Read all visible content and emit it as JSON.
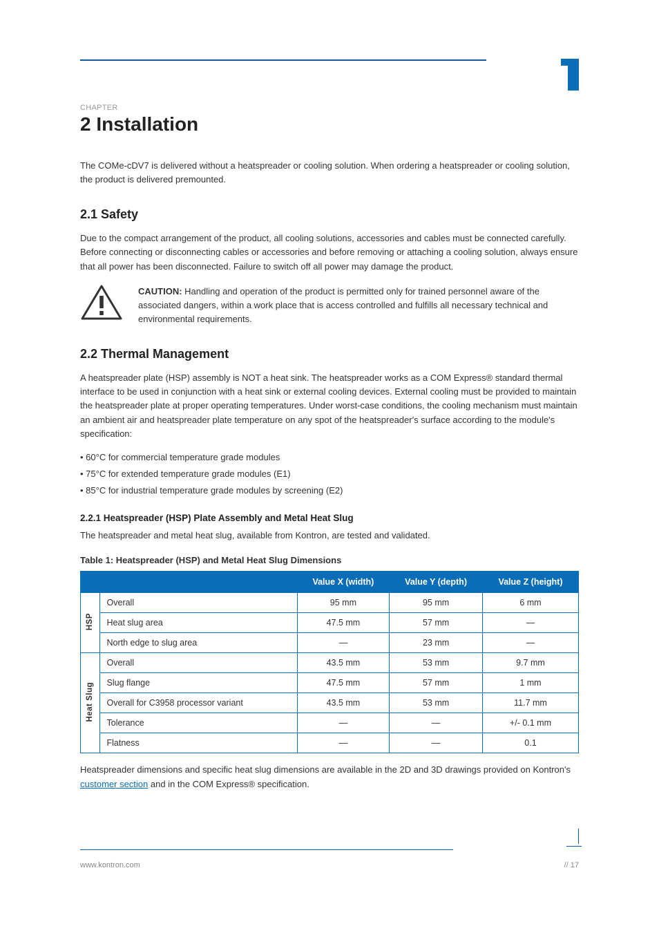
{
  "brand_color": "#0a6db8",
  "rule_color": "#0a5aa3",
  "page": {
    "chapter_label": "CHAPTER",
    "chapter_title": "2 Installation",
    "p1": "The COMe-cDV7 is delivered without a heatspreader or cooling solution. When ordering a heatspreader or cooling solution, the product is delivered premounted.",
    "s1_head": "2.1 Safety",
    "s1_p1": "Due to the compact arrangement of the product, all cooling solutions, accessories and cables must be connected carefully. Before connecting or disconnecting cables or accessories and before removing or attaching a cooling solution, always ensure that all power has been disconnected. Failure to switch off all power may damage the product.",
    "caution_label": "CAUTION:",
    "caution_text": " Handling and operation of the product is permitted only for trained personnel aware of the associated dangers, within a work place that is access controlled and fulfills all necessary technical and environmental requirements.",
    "s2_head": "2.2 Thermal Management",
    "s2_p1": "A heatspreader plate (HSP) assembly is NOT a heat sink. The heatspreader works as a COM Express® standard thermal interface to be used in conjunction with a heat sink or external cooling devices. External cooling must be provided to maintain the heatspreader plate at proper operating temperatures. Under worst-case conditions, the cooling mechanism must maintain an ambient air and heatspreader plate temperature on any spot of the heatspreader's surface according to the module's specification:",
    "s2_b1": "• 60°C for commercial temperature grade modules",
    "s2_b2": "• 75°C for extended temperature grade modules (E1)",
    "s2_b3": "• 85°C for industrial temperature grade modules by screening (E2)",
    "s22_head": "2.2.1 Heatspreader (HSP) Plate Assembly and Metal Heat Slug",
    "s22_p1": "The heatspreader and metal heat slug, available from Kontron, are tested and validated.",
    "table_title": "Table 1: Heatspreader (HSP) and Metal Heat Slug Dimensions",
    "table": {
      "header_bg": "#0a6db8",
      "border_color": "#0a6db8",
      "columns": [
        "",
        "",
        "Value X (width)",
        "Value Y (depth)",
        "Value Z (height)"
      ],
      "groups": [
        {
          "label": "HSP",
          "rows": [
            {
              "name": "Overall",
              "x": "95 mm",
              "y": "95 mm",
              "z": "6 mm"
            },
            {
              "name": "Heat slug area",
              "x": "47.5 mm",
              "y": "57 mm",
              "z": "—"
            },
            {
              "name": "North edge to slug area",
              "x": "—",
              "y": "23 mm",
              "z": "—"
            }
          ]
        },
        {
          "label": "Heat Slug",
          "rows": [
            {
              "name": "Overall",
              "x": "43.5 mm",
              "y": "53 mm",
              "z": "9.7 mm"
            },
            {
              "name": "Slug flange",
              "x": "47.5 mm",
              "y": "57 mm",
              "z": "1 mm"
            },
            {
              "name": "Overall for C3958 processor variant",
              "x": "43.5 mm",
              "y": "53 mm",
              "z": "11.7 mm"
            },
            {
              "name": "Tolerance",
              "x": "—",
              "y": "—",
              "z": "+/- 0.1 mm"
            },
            {
              "name": "Flatness",
              "x": "—",
              "y": "—",
              "z": "0.1"
            }
          ]
        }
      ]
    },
    "s22_p2": "Heatspreader dimensions and specific heat slug dimensions are available in the 2D and 3D drawings provided on Kontron's ",
    "s22_link": "customer section",
    "s22_p3": " and in the COM Express® specification.",
    "footer_left": "www.kontron.com",
    "footer_right": "// 17"
  }
}
